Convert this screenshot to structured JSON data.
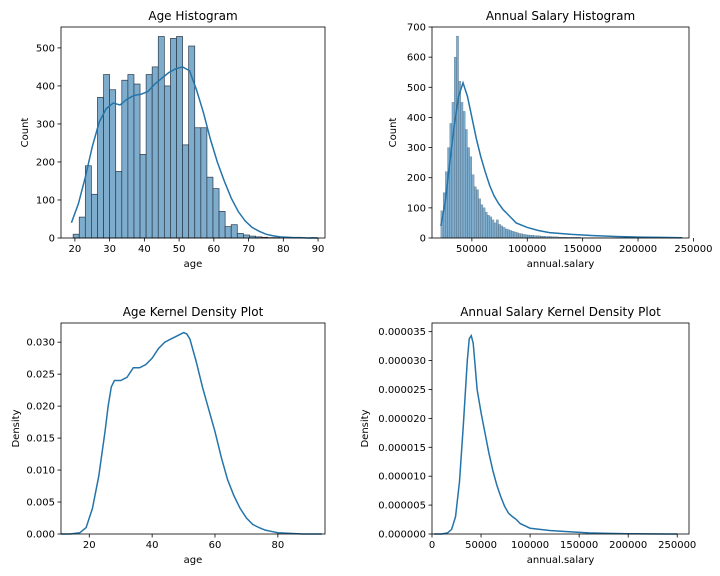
{
  "colors": {
    "bar_fill": "#6fa3c8",
    "bar_stroke": "#2e3b48",
    "line": "#2474aa",
    "axis": "#000000"
  },
  "chart_data": [
    {
      "id": "age-hist",
      "type": "bar",
      "title": "Age Histogram",
      "xlabel": "age",
      "ylabel": "Count",
      "xlim": [
        16,
        92
      ],
      "ylim": [
        0,
        555
      ],
      "xticks": [
        20,
        30,
        40,
        50,
        60,
        70,
        80,
        90
      ],
      "yticks": [
        0,
        100,
        200,
        300,
        400,
        500
      ],
      "bin_start": 19.5,
      "bin_width": 1.75,
      "values": [
        10,
        55,
        190,
        115,
        370,
        430,
        390,
        175,
        415,
        430,
        405,
        220,
        430,
        450,
        530,
        400,
        525,
        530,
        245,
        505,
        290,
        290,
        160,
        130,
        70,
        30,
        35,
        12,
        8,
        5,
        3,
        2,
        1,
        1,
        0,
        0,
        0,
        0,
        0,
        1
      ],
      "kde": {
        "x": [
          19,
          21,
          23,
          25,
          27,
          29,
          31,
          33,
          35,
          37,
          39,
          41,
          43,
          45,
          47,
          49,
          51,
          53,
          55,
          57,
          59,
          61,
          63,
          65,
          67,
          69,
          71,
          73,
          75,
          77,
          79,
          81,
          83,
          85,
          87,
          90
        ],
        "y": [
          40,
          90,
          160,
          240,
          305,
          340,
          355,
          350,
          365,
          375,
          378,
          385,
          405,
          420,
          435,
          445,
          450,
          440,
          390,
          330,
          260,
          200,
          150,
          105,
          70,
          45,
          28,
          18,
          10,
          6,
          3,
          2,
          1,
          1,
          0,
          0
        ]
      }
    },
    {
      "id": "salary-hist",
      "type": "bar",
      "title": "Annual Salary Histogram",
      "xlabel": "annual.salary",
      "ylabel": "Count",
      "xlim": [
        14000,
        246000
      ],
      "ylim": [
        0,
        700
      ],
      "xticks": [
        50000,
        100000,
        150000,
        200000,
        250000
      ],
      "yticks": [
        0,
        100,
        200,
        300,
        400,
        500,
        600,
        700
      ],
      "bin_start": 22000,
      "bin_width": 2000,
      "values": [
        90,
        150,
        220,
        300,
        380,
        450,
        600,
        670,
        520,
        450,
        420,
        360,
        300,
        270,
        210,
        170,
        160,
        130,
        110,
        100,
        85,
        75,
        70,
        60,
        50,
        60,
        45,
        40,
        35,
        30,
        28,
        25,
        22,
        20,
        18,
        15,
        14,
        12,
        11,
        10,
        9,
        9,
        8,
        8,
        7,
        6,
        6,
        5,
        5,
        5,
        4,
        4,
        4,
        3,
        3,
        3,
        3,
        2,
        2,
        2,
        2,
        2,
        2,
        1,
        1,
        1,
        1,
        1,
        1,
        1,
        1,
        1,
        1,
        1,
        1,
        1,
        1,
        1,
        1,
        1,
        1,
        1,
        1,
        1,
        1,
        1,
        1,
        1,
        1,
        1,
        1,
        1,
        1,
        1,
        1,
        1,
        1,
        1,
        1,
        1,
        1,
        1,
        1,
        1,
        1,
        1,
        1,
        1,
        1
      ],
      "kde": {
        "x": [
          22000,
          26000,
          30000,
          34000,
          38000,
          42000,
          46000,
          50000,
          54000,
          58000,
          62000,
          66000,
          70000,
          74000,
          78000,
          82000,
          86000,
          90000,
          100000,
          110000,
          120000,
          140000,
          160000,
          180000,
          200000,
          220000,
          240000
        ],
        "y": [
          40,
          120,
          250,
          370,
          470,
          515,
          470,
          400,
          330,
          270,
          220,
          175,
          140,
          115,
          95,
          80,
          65,
          50,
          35,
          25,
          18,
          12,
          8,
          5,
          3,
          2,
          1
        ]
      }
    },
    {
      "id": "age-kde",
      "type": "line",
      "title": "Age Kernel Density Plot",
      "xlabel": "age",
      "ylabel": "Density",
      "xlim": [
        11,
        95
      ],
      "ylim": [
        0,
        0.033
      ],
      "xticks": [
        20,
        40,
        60,
        80
      ],
      "yticks": [
        0,
        0.005,
        0.01,
        0.015,
        0.02,
        0.025,
        0.03
      ],
      "ytick_labels": [
        "0.000",
        "0.005",
        "0.010",
        "0.015",
        "0.020",
        "0.025",
        "0.030"
      ],
      "x": [
        11,
        14,
        17,
        19,
        21,
        23,
        25,
        26,
        27,
        28,
        30,
        32,
        34,
        36,
        38,
        40,
        42,
        44,
        46,
        48,
        50,
        51,
        52,
        54,
        56,
        58,
        60,
        62,
        64,
        66,
        68,
        70,
        72,
        74,
        76,
        78,
        80,
        84,
        88,
        92,
        94
      ],
      "y": [
        0,
        0,
        0.0002,
        0.001,
        0.004,
        0.009,
        0.016,
        0.02,
        0.023,
        0.024,
        0.024,
        0.0245,
        0.026,
        0.026,
        0.0265,
        0.0275,
        0.029,
        0.03,
        0.0305,
        0.031,
        0.0315,
        0.0313,
        0.0305,
        0.027,
        0.023,
        0.0195,
        0.016,
        0.012,
        0.0085,
        0.006,
        0.004,
        0.0025,
        0.0015,
        0.001,
        0.0006,
        0.0004,
        0.0002,
        0.0001,
        0,
        0,
        0
      ]
    },
    {
      "id": "salary-kde",
      "type": "line",
      "title": "Annual Salary Kernel Density Plot",
      "xlabel": "annual.salary",
      "ylabel": "Density",
      "xlim": [
        0,
        262000
      ],
      "ylim": [
        0,
        3.65e-05
      ],
      "xticks": [
        0,
        50000,
        100000,
        150000,
        200000,
        250000
      ],
      "yticks": [
        0,
        5e-06,
        1e-05,
        1.5e-05,
        2e-05,
        2.5e-05,
        3e-05,
        3.5e-05
      ],
      "ytick_labels": [
        "0.000000",
        "0.000005",
        "0.000010",
        "0.000015",
        "0.000020",
        "0.000025",
        "0.000030",
        "0.000035"
      ],
      "x": [
        2000,
        10000,
        16000,
        20000,
        24000,
        28000,
        32000,
        36000,
        38000,
        40000,
        42000,
        44000,
        46000,
        50000,
        54000,
        58000,
        62000,
        66000,
        70000,
        74000,
        78000,
        82000,
        86000,
        90000,
        100000,
        110000,
        120000,
        140000,
        160000,
        180000,
        200000,
        220000,
        240000,
        250000
      ],
      "y": [
        0,
        0,
        2e-07,
        8e-07,
        3e-06,
        9e-06,
        1.9e-05,
        3e-05,
        3.38e-05,
        3.43e-05,
        3.3e-05,
        2.9e-05,
        2.5e-05,
        2.1e-05,
        1.75e-05,
        1.4e-05,
        1.1e-05,
        8.5e-06,
        6.5e-06,
        4.8e-06,
        3.6e-06,
        3e-06,
        2.5e-06,
        1.8e-06,
        1e-06,
        8e-07,
        6e-07,
        4e-07,
        2e-07,
        1e-07,
        5e-08,
        3e-08,
        1e-08,
        0
      ]
    }
  ]
}
